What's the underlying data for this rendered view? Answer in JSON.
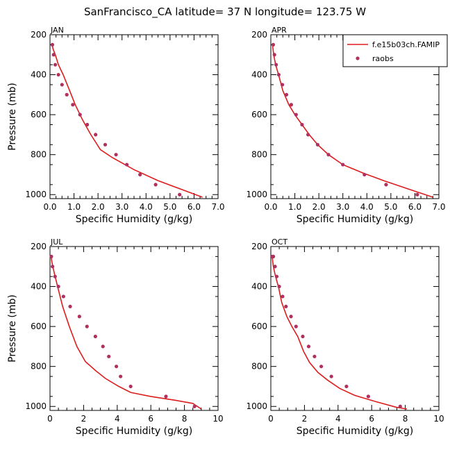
{
  "figure": {
    "title": "SanFrancisco_CA  latitude= 37 N longitude= 123.75 W"
  },
  "legend": {
    "placement": "top-right of APR panel",
    "entries": [
      {
        "label": "f.e15b03ch.FAMIP",
        "style": "line",
        "color": "#dd1c1c"
      },
      {
        "label": "raobs",
        "style": "marker",
        "color": "#b03060"
      }
    ]
  },
  "colors": {
    "model": "#dd1c1c",
    "raobs": "#b03060"
  },
  "chart_data": [
    {
      "type": "line",
      "title": "JAN",
      "xlabel": "Specific Humidity (g/kg)",
      "ylabel": "Pressure (mb)",
      "xlim": [
        0,
        7
      ],
      "ylim": [
        1020,
        200
      ],
      "xticks": [
        "0.0",
        "1.0",
        "2.0",
        "3.0",
        "4.0",
        "5.0",
        "6.0",
        "7.0"
      ],
      "yticks": [
        "200",
        "400",
        "600",
        "800",
        "1000"
      ],
      "series": [
        {
          "name": "f.e15b03ch.FAMIP",
          "style": "line",
          "x": [
            6.35,
            5.5,
            4.5,
            3.5,
            2.6,
            2.1,
            1.7,
            1.35,
            1.05,
            0.8,
            0.55,
            0.35,
            0.22,
            0.14,
            0.08
          ],
          "y": [
            1013,
            975,
            930,
            875,
            815,
            775,
            700,
            625,
            550,
            475,
            400,
            350,
            300,
            275,
            250
          ]
        },
        {
          "name": "raobs",
          "style": "scatter",
          "x": [
            5.4,
            4.4,
            3.75,
            3.2,
            2.75,
            2.3,
            1.9,
            1.55,
            1.25,
            0.95,
            0.7,
            0.5,
            0.35,
            0.22,
            0.15,
            0.1
          ],
          "y": [
            1000,
            950,
            900,
            850,
            800,
            750,
            700,
            650,
            600,
            550,
            500,
            450,
            400,
            350,
            300,
            250
          ]
        }
      ]
    },
    {
      "type": "line",
      "title": "APR",
      "xlabel": "Specific Humidity (g/kg)",
      "ylabel": "",
      "xlim": [
        0,
        7
      ],
      "ylim": [
        1020,
        200
      ],
      "xticks": [
        "0.0",
        "1.0",
        "2.0",
        "3.0",
        "4.0",
        "5.0",
        "6.0",
        "7.0"
      ],
      "yticks": [
        "200",
        "400",
        "600",
        "800",
        "1000"
      ],
      "series": [
        {
          "name": "f.e15b03ch.FAMIP",
          "style": "line",
          "x": [
            6.75,
            5.8,
            4.7,
            3.8,
            3.0,
            2.4,
            1.95,
            1.6,
            1.3,
            1.0,
            0.75,
            0.5,
            0.32,
            0.2,
            0.12,
            0.07
          ],
          "y": [
            1013,
            975,
            930,
            890,
            850,
            800,
            750,
            700,
            650,
            600,
            550,
            480,
            400,
            350,
            300,
            250
          ]
        },
        {
          "name": "raobs",
          "style": "scatter",
          "x": [
            6.1,
            4.8,
            3.9,
            3.0,
            2.4,
            1.95,
            1.55,
            1.3,
            1.05,
            0.85,
            0.65,
            0.48,
            0.33,
            0.22,
            0.15,
            0.1
          ],
          "y": [
            1000,
            950,
            900,
            850,
            800,
            750,
            700,
            650,
            600,
            550,
            500,
            450,
            400,
            350,
            300,
            250
          ]
        }
      ]
    },
    {
      "type": "line",
      "title": "JUL",
      "xlabel": "Specific Humidity (g/kg)",
      "ylabel": "Pressure (mb)",
      "xlim": [
        0,
        10
      ],
      "ylim": [
        1020,
        200
      ],
      "xticks": [
        "0",
        "2",
        "4",
        "6",
        "8",
        "10"
      ],
      "yticks": [
        "200",
        "400",
        "600",
        "800",
        "1000"
      ],
      "series": [
        {
          "name": "f.e15b03ch.FAMIP",
          "style": "line",
          "x": [
            9.0,
            8.5,
            7.5,
            6.0,
            4.8,
            4.1,
            3.3,
            2.7,
            2.1,
            1.6,
            1.15,
            0.75,
            0.45,
            0.25,
            0.12,
            0.06
          ],
          "y": [
            1013,
            985,
            970,
            950,
            930,
            900,
            860,
            820,
            775,
            700,
            600,
            500,
            400,
            330,
            280,
            250
          ]
        },
        {
          "name": "raobs",
          "style": "scatter",
          "x": [
            8.6,
            6.9,
            4.8,
            4.2,
            3.95,
            3.5,
            3.15,
            2.7,
            2.2,
            1.75,
            1.2,
            0.8,
            0.5,
            0.3,
            0.15,
            0.08
          ],
          "y": [
            1000,
            950,
            900,
            850,
            800,
            750,
            700,
            650,
            600,
            550,
            500,
            450,
            400,
            350,
            300,
            250
          ]
        }
      ]
    },
    {
      "type": "line",
      "title": "OCT",
      "xlabel": "Specific Humidity (g/kg)",
      "ylabel": "",
      "xlim": [
        0,
        10
      ],
      "ylim": [
        1020,
        200
      ],
      "xticks": [
        "0",
        "2",
        "4",
        "6",
        "8",
        "10"
      ],
      "yticks": [
        "200",
        "400",
        "600",
        "800",
        "1000"
      ],
      "series": [
        {
          "name": "f.e15b03ch.FAMIP",
          "style": "line",
          "x": [
            8.1,
            7.5,
            6.2,
            5.0,
            4.1,
            3.4,
            2.8,
            2.3,
            1.95,
            1.6,
            1.25,
            0.95,
            0.65,
            0.45,
            0.28,
            0.15,
            0.08
          ],
          "y": [
            1013,
            1005,
            975,
            945,
            910,
            870,
            830,
            780,
            725,
            650,
            600,
            550,
            480,
            400,
            350,
            300,
            250
          ]
        },
        {
          "name": "raobs",
          "style": "scatter",
          "x": [
            7.7,
            5.8,
            4.5,
            3.6,
            3.0,
            2.6,
            2.25,
            1.9,
            1.5,
            1.2,
            0.9,
            0.7,
            0.5,
            0.35,
            0.25,
            0.15,
            0.1
          ],
          "y": [
            1000,
            950,
            900,
            850,
            800,
            750,
            700,
            650,
            600,
            550,
            500,
            450,
            400,
            350,
            300,
            250,
            250
          ]
        }
      ]
    }
  ]
}
